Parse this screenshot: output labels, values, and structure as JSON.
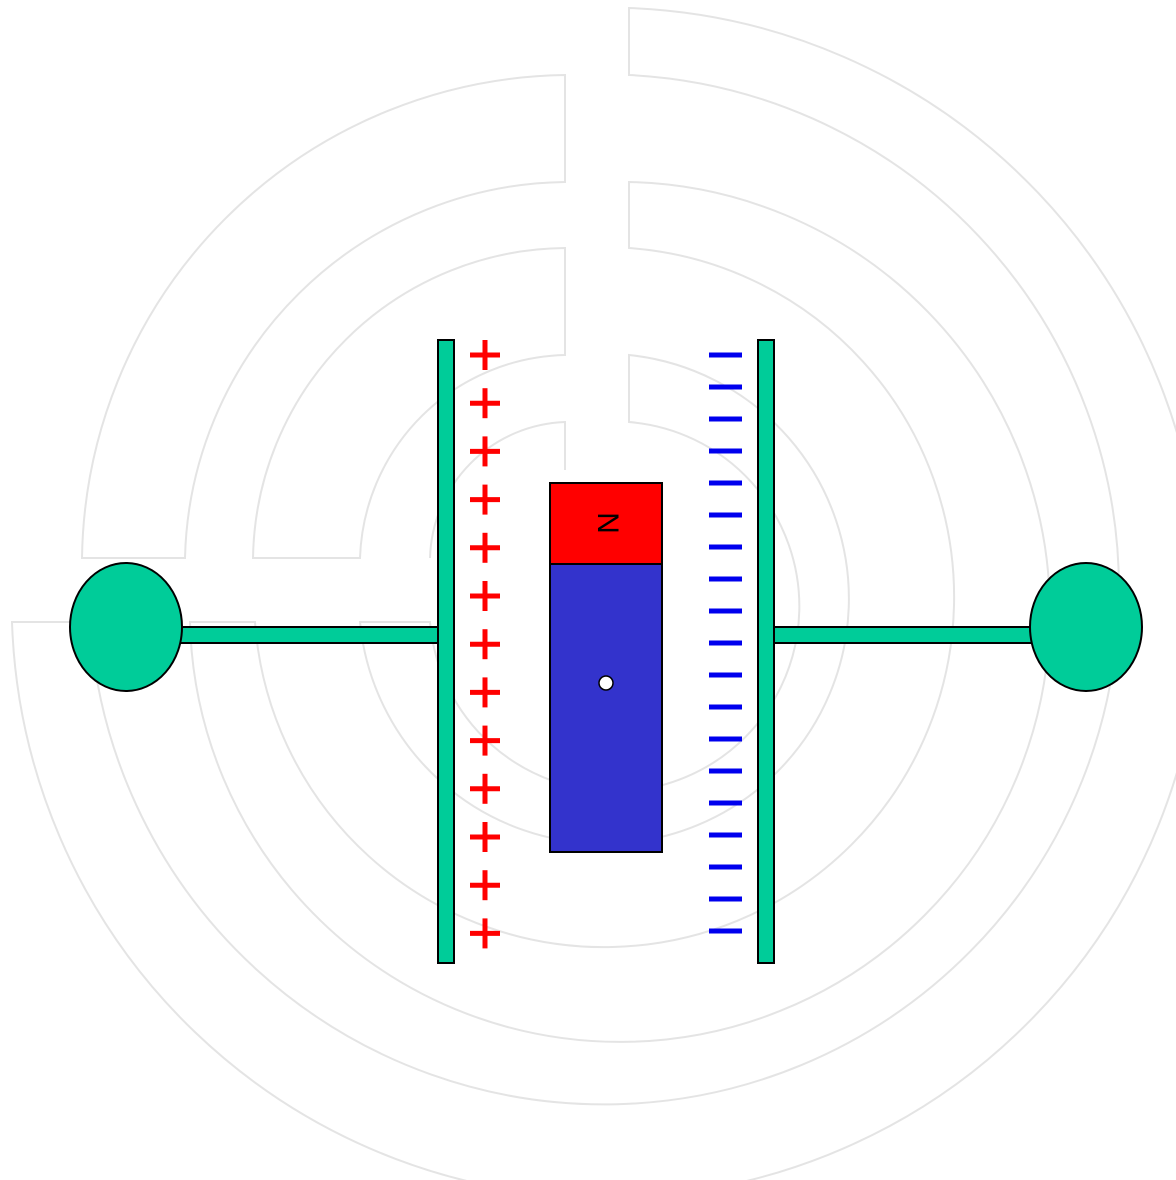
{
  "magnet": {
    "label": "N"
  }
}
